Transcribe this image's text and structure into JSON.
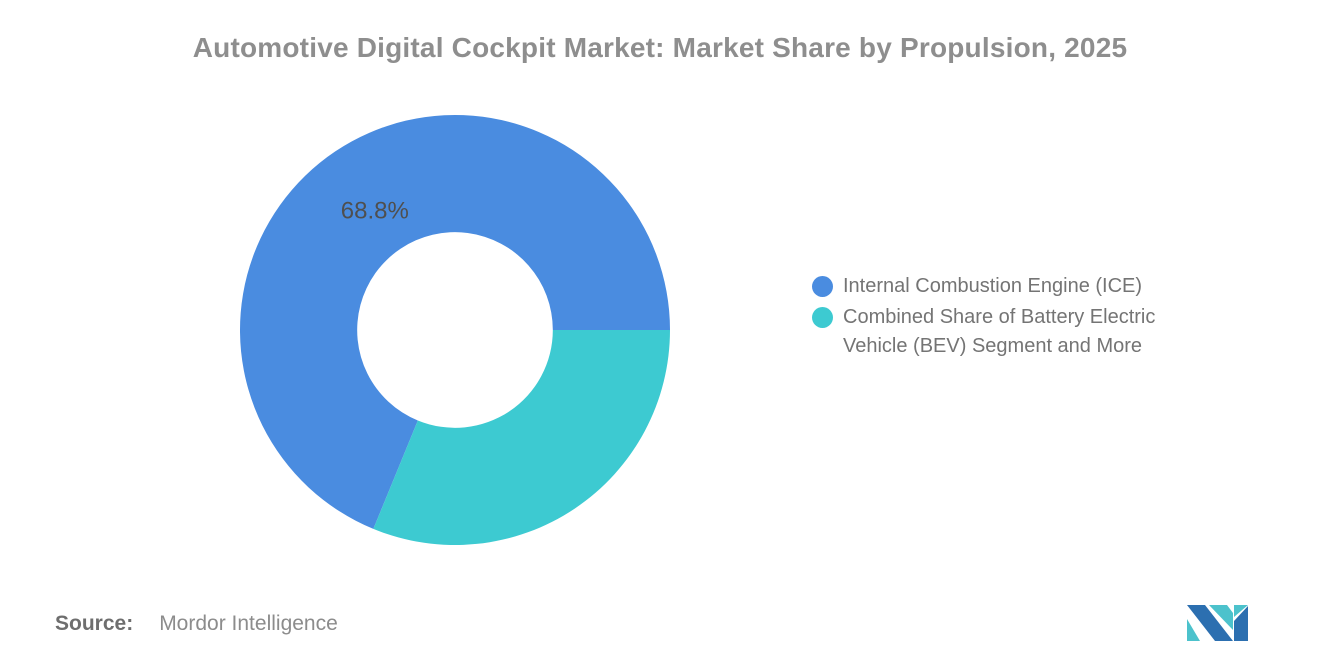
{
  "title": "Automotive Digital Cockpit Market: Market Share by Propulsion, 2025",
  "chart_data": {
    "type": "pie",
    "subtype": "donut",
    "title": "Automotive Digital Cockpit Market: Market Share by Propulsion, 2025",
    "categories": [
      "Internal Combustion Engine (ICE)",
      "Combined Share of Battery Electric Vehicle (BEV) Segment and More"
    ],
    "values": [
      68.8,
      31.2
    ],
    "slices": [
      {
        "name": "Internal Combustion Engine (ICE)",
        "value": 68.8,
        "percent_label": "68.8%",
        "color": "#4a8ce0"
      },
      {
        "name": "Combined Share of Battery Electric Vehicle (BEV) Segment and More",
        "value": 31.2,
        "percent_label": "",
        "color": "#3dcad1"
      }
    ],
    "rotation_deg": 202.32,
    "inner_radius_ratio": 0.455,
    "label_radius_ratio": 0.67,
    "label_color": "#4f4f4f",
    "legend_position": "right",
    "grid": false
  },
  "legend": {
    "items": [
      {
        "label": "Internal Combustion Engine (ICE)",
        "color": "#4a8ce0"
      },
      {
        "label": "Combined Share of Battery Electric\nVehicle (BEV) Segment and More",
        "color": "#3dcad1"
      }
    ]
  },
  "source": {
    "prefix": "Source:",
    "name": "Mordor Intelligence"
  },
  "logo": {
    "blue": "#2c6fb0",
    "teal": "#4cc2cc"
  }
}
